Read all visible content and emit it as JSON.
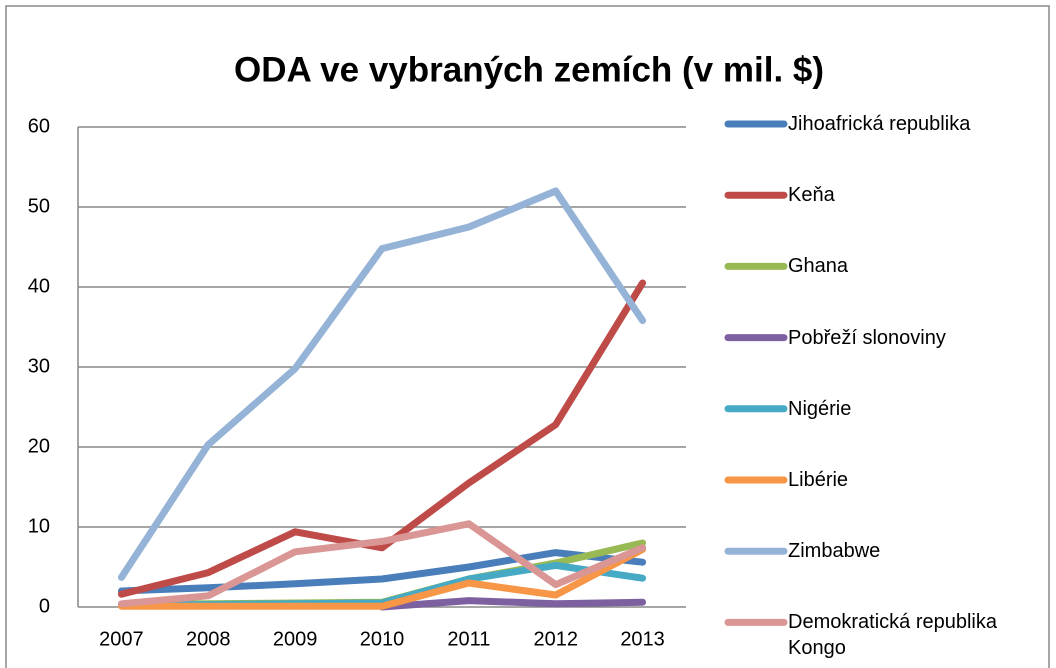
{
  "chart_data": {
    "type": "line",
    "title": "ODA ve vybraných zemích (v mil. $)",
    "categories": [
      "2007",
      "2008",
      "2009",
      "2010",
      "2011",
      "2012",
      "2013"
    ],
    "series": [
      {
        "name": "Jihoafrická republika",
        "color": "#4a7ebb",
        "values": [
          2.0,
          2.4,
          2.9,
          3.5,
          5.0,
          6.8,
          5.6
        ]
      },
      {
        "name": "Keňa",
        "color": "#be4b48",
        "values": [
          1.6,
          4.3,
          9.4,
          7.4,
          15.5,
          22.8,
          40.5
        ]
      },
      {
        "name": "Ghana",
        "color": "#98b954",
        "values": [
          0.3,
          0.4,
          0.5,
          0.6,
          3.5,
          5.5,
          8.0
        ]
      },
      {
        "name": "Pobřeží slonoviny",
        "color": "#7d60a0",
        "values": [
          null,
          null,
          null,
          0,
          0.8,
          0.4,
          0.6
        ]
      },
      {
        "name": "Nigérie",
        "color": "#46aac5",
        "values": [
          0.3,
          0.3,
          0.4,
          0.5,
          3.5,
          5.2,
          3.6
        ]
      },
      {
        "name": "Libérie",
        "color": "#f79646",
        "values": [
          0.1,
          0.1,
          0.1,
          0.1,
          3.0,
          1.5,
          7.2
        ]
      },
      {
        "name": "Zimbabwe",
        "color": "#95b3d7",
        "values": [
          3.7,
          20.3,
          29.8,
          44.8,
          47.5,
          52.0,
          35.8
        ]
      },
      {
        "name": "Demokratická republika Kongo",
        "color": "#d99694",
        "values": [
          0.4,
          1.4,
          6.9,
          8.2,
          10.4,
          2.8,
          7.4
        ]
      }
    ],
    "ylim": [
      0,
      60
    ],
    "yticks": [
      0,
      10,
      20,
      30,
      40,
      50,
      60
    ],
    "grid": true,
    "legend": "right"
  }
}
